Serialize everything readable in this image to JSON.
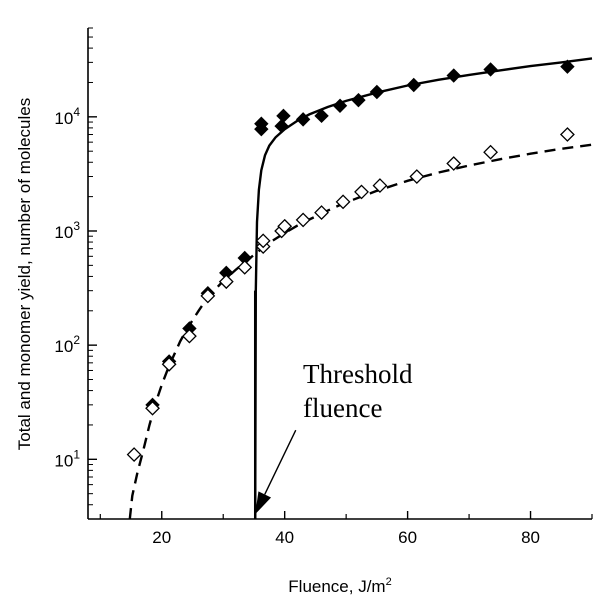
{
  "chart_data": {
    "type": "scatter",
    "xlabel": "Fluence, J/m",
    "xlabel_sup": "2",
    "ylabel": "Total and monomer yield, number of molecules",
    "xlim": [
      8,
      90
    ],
    "ylim": [
      3,
      60000
    ],
    "yscale": "log",
    "grid": false,
    "legend": "none",
    "x_ticks": [
      20,
      40,
      60,
      80
    ],
    "y_ticks": [
      {
        "value": 10,
        "base": "10",
        "exp": "1"
      },
      {
        "value": 100,
        "base": "10",
        "exp": "2"
      },
      {
        "value": 1000,
        "base": "10",
        "exp": "3"
      },
      {
        "value": 10000,
        "base": "10",
        "exp": "4"
      }
    ],
    "annotation": {
      "line1": "Threshold",
      "line2": "fluence",
      "arrow_to": {
        "x": 35.2,
        "y": 3.3
      },
      "arrow_from": {
        "x": 41.8,
        "y": 18
      }
    },
    "threshold_x": 35.2,
    "series": [
      {
        "marker": "diamond-filled",
        "color": "#000000",
        "points": [
          {
            "x": 18.5,
            "y": 30
          },
          {
            "x": 21.2,
            "y": 72
          },
          {
            "x": 24.5,
            "y": 140
          },
          {
            "x": 27.5,
            "y": 285
          },
          {
            "x": 30.5,
            "y": 430
          },
          {
            "x": 33.5,
            "y": 580
          },
          {
            "x": 36.2,
            "y": 7800
          },
          {
            "x": 36.2,
            "y": 8700
          },
          {
            "x": 39.5,
            "y": 8300
          },
          {
            "x": 39.8,
            "y": 10200
          },
          {
            "x": 43,
            "y": 9500
          },
          {
            "x": 46,
            "y": 10200
          },
          {
            "x": 49,
            "y": 12500
          },
          {
            "x": 52,
            "y": 14000
          },
          {
            "x": 55,
            "y": 16500
          },
          {
            "x": 61,
            "y": 19000
          },
          {
            "x": 67.5,
            "y": 23000
          },
          {
            "x": 73.5,
            "y": 26000
          },
          {
            "x": 86,
            "y": 27500
          }
        ]
      },
      {
        "marker": "diamond-open",
        "color": "#000000",
        "points": [
          {
            "x": 15.5,
            "y": 11
          },
          {
            "x": 18.5,
            "y": 28
          },
          {
            "x": 21.2,
            "y": 68
          },
          {
            "x": 24.5,
            "y": 120
          },
          {
            "x": 27.5,
            "y": 270
          },
          {
            "x": 30.5,
            "y": 360
          },
          {
            "x": 33.5,
            "y": 480
          },
          {
            "x": 36.5,
            "y": 730
          },
          {
            "x": 36.5,
            "y": 820
          },
          {
            "x": 39.5,
            "y": 1000
          },
          {
            "x": 40,
            "y": 1100
          },
          {
            "x": 43,
            "y": 1250
          },
          {
            "x": 46,
            "y": 1450
          },
          {
            "x": 49.5,
            "y": 1800
          },
          {
            "x": 52.5,
            "y": 2200
          },
          {
            "x": 55.5,
            "y": 2500
          },
          {
            "x": 61.5,
            "y": 3000
          },
          {
            "x": 67.5,
            "y": 3900
          },
          {
            "x": 73.5,
            "y": 4900
          },
          {
            "x": 86,
            "y": 7000
          }
        ]
      }
    ],
    "curves": [
      {
        "style": "solid",
        "points": [
          [
            35.2,
            3
          ],
          [
            35.3,
            300
          ],
          [
            35.5,
            1200
          ],
          [
            35.8,
            2300
          ],
          [
            36.2,
            3400
          ],
          [
            36.8,
            4600
          ],
          [
            37.5,
            5600
          ],
          [
            38.5,
            6600
          ],
          [
            40,
            7800
          ],
          [
            42,
            9200
          ],
          [
            44,
            10500
          ],
          [
            47,
            12200
          ],
          [
            50,
            13800
          ],
          [
            55,
            16300
          ],
          [
            60,
            18800
          ],
          [
            65,
            21100
          ],
          [
            70,
            23300
          ],
          [
            75,
            25500
          ],
          [
            80,
            27800
          ],
          [
            85,
            30000
          ],
          [
            90,
            32500
          ]
        ]
      },
      {
        "style": "dashed",
        "points": [
          [
            14.8,
            3
          ],
          [
            15.2,
            4.8
          ],
          [
            16,
            7.5
          ],
          [
            17,
            12
          ],
          [
            18,
            20
          ],
          [
            19,
            31
          ],
          [
            20,
            45
          ],
          [
            21,
            62
          ],
          [
            22,
            82
          ],
          [
            23,
            108
          ],
          [
            24,
            135
          ],
          [
            25,
            165
          ],
          [
            26,
            200
          ],
          [
            27,
            240
          ],
          [
            28,
            280
          ],
          [
            29,
            320
          ],
          [
            30,
            365
          ],
          [
            32,
            455
          ],
          [
            34,
            560
          ],
          [
            36,
            680
          ],
          [
            38,
            820
          ],
          [
            40,
            960
          ],
          [
            42,
            1110
          ],
          [
            44,
            1260
          ],
          [
            46,
            1420
          ],
          [
            48,
            1600
          ],
          [
            50,
            1780
          ],
          [
            55,
            2250
          ],
          [
            60,
            2750
          ],
          [
            65,
            3250
          ],
          [
            70,
            3750
          ],
          [
            75,
            4250
          ],
          [
            80,
            4750
          ],
          [
            85,
            5250
          ],
          [
            90,
            5700
          ]
        ]
      }
    ]
  }
}
